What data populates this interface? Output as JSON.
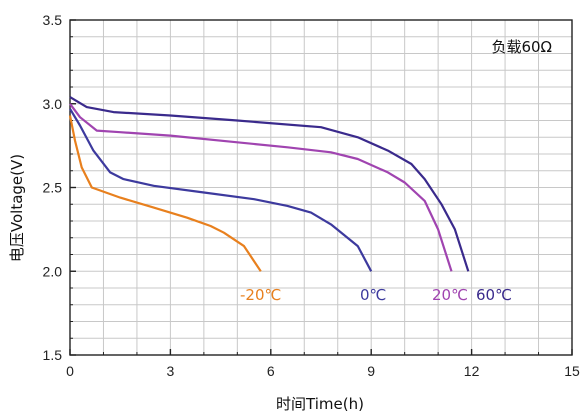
{
  "chart_data": {
    "type": "line",
    "xlabel": "时间Time(h)",
    "ylabel": "电压Voltage(V)",
    "annotation": "负载60Ω",
    "xlim": [
      0,
      15
    ],
    "ylim": [
      1.5,
      3.5
    ],
    "x_ticks": [
      "0",
      "3",
      "6",
      "9",
      "12",
      "15"
    ],
    "y_ticks": [
      "1.5",
      "2.0",
      "2.5",
      "3.0",
      "3.5"
    ],
    "grid": true,
    "series": [
      {
        "name": "-20℃",
        "color": "#e8801e",
        "points": [
          [
            0,
            2.93
          ],
          [
            0.15,
            2.78
          ],
          [
            0.35,
            2.62
          ],
          [
            0.65,
            2.5
          ],
          [
            1.5,
            2.44
          ],
          [
            2.5,
            2.38
          ],
          [
            3.5,
            2.32
          ],
          [
            4.2,
            2.27
          ],
          [
            4.6,
            2.23
          ],
          [
            5.2,
            2.15
          ],
          [
            5.7,
            2.0
          ]
        ]
      },
      {
        "name": "0℃",
        "color": "#3d3a9e",
        "points": [
          [
            0,
            2.97
          ],
          [
            0.3,
            2.87
          ],
          [
            0.7,
            2.72
          ],
          [
            1.2,
            2.59
          ],
          [
            1.6,
            2.55
          ],
          [
            2.5,
            2.51
          ],
          [
            4.0,
            2.47
          ],
          [
            5.5,
            2.43
          ],
          [
            6.5,
            2.39
          ],
          [
            7.2,
            2.35
          ],
          [
            7.8,
            2.28
          ],
          [
            8.6,
            2.15
          ],
          [
            9.0,
            2.0
          ]
        ]
      },
      {
        "name": "20℃",
        "color": "#a044b0",
        "points": [
          [
            0,
            3.0
          ],
          [
            0.3,
            2.92
          ],
          [
            0.8,
            2.84
          ],
          [
            1.5,
            2.83
          ],
          [
            3.0,
            2.81
          ],
          [
            5.0,
            2.77
          ],
          [
            6.5,
            2.74
          ],
          [
            7.8,
            2.71
          ],
          [
            8.6,
            2.67
          ],
          [
            9.5,
            2.59
          ],
          [
            10.0,
            2.53
          ],
          [
            10.6,
            2.42
          ],
          [
            11.0,
            2.25
          ],
          [
            11.4,
            2.0
          ]
        ]
      },
      {
        "name": "60℃",
        "color": "#3a2a8c",
        "points": [
          [
            0,
            3.04
          ],
          [
            0.5,
            2.98
          ],
          [
            1.3,
            2.95
          ],
          [
            3.0,
            2.93
          ],
          [
            5.0,
            2.9
          ],
          [
            7.5,
            2.86
          ],
          [
            8.6,
            2.8
          ],
          [
            9.5,
            2.72
          ],
          [
            10.2,
            2.64
          ],
          [
            10.6,
            2.55
          ],
          [
            11.1,
            2.4
          ],
          [
            11.5,
            2.25
          ],
          [
            11.9,
            2.0
          ]
        ]
      }
    ],
    "series_label_positions_data": []
  }
}
